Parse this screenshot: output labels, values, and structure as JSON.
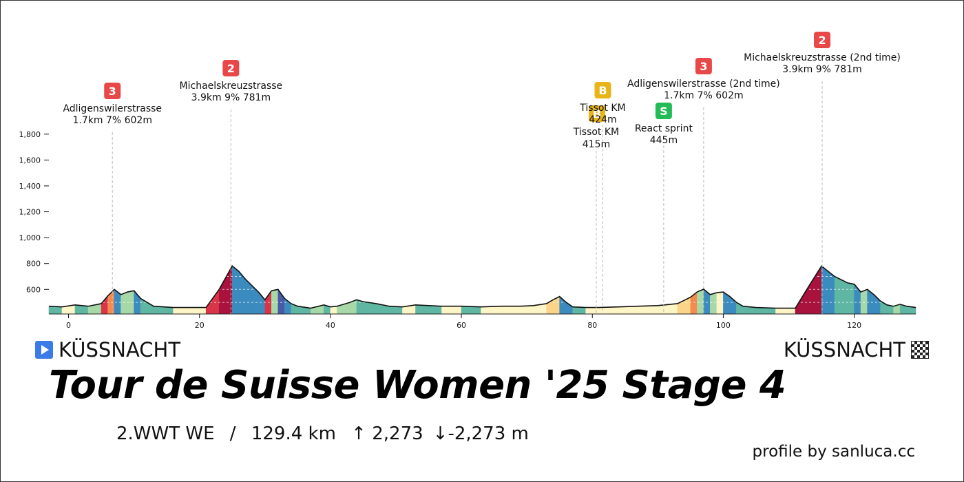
{
  "chart_data": {
    "type": "area",
    "title": "Tour de Suisse Women '25 Stage 4",
    "xlim": [
      -3,
      129.4
    ],
    "ylim": [
      410,
      1900
    ],
    "x_ticks": [
      0,
      20,
      40,
      60,
      80,
      100,
      120
    ],
    "y_ticks": [
      600,
      800,
      1000,
      1200,
      1400,
      1600,
      1800
    ],
    "y_tick_labels": [
      "600",
      "800",
      "1,000",
      "1,200",
      "1,400",
      "1,600",
      "1,800"
    ],
    "profile": {
      "x": [
        -3,
        -1,
        1,
        3,
        5,
        6,
        7,
        8,
        9,
        10,
        11,
        13,
        16,
        19,
        21,
        23,
        25,
        26,
        27,
        28,
        29,
        30,
        31,
        32,
        33,
        34,
        35,
        37,
        39,
        40,
        41,
        43,
        44,
        45,
        47,
        49,
        51,
        53,
        55,
        57,
        60,
        63,
        66,
        69,
        71,
        73,
        74,
        75,
        76,
        77,
        79,
        81,
        84,
        87,
        90,
        93,
        95,
        96,
        97,
        98,
        99,
        100,
        101,
        102,
        103,
        105,
        108,
        111,
        113,
        115,
        116,
        117,
        119,
        120,
        121,
        122,
        123,
        124,
        125,
        126,
        127,
        128,
        129.4
      ],
      "y": [
        470,
        465,
        480,
        470,
        490,
        550,
        600,
        560,
        580,
        590,
        530,
        470,
        460,
        460,
        460,
        600,
        781,
        740,
        680,
        630,
        580,
        520,
        590,
        600,
        530,
        490,
        470,
        455,
        480,
        465,
        470,
        500,
        520,
        505,
        490,
        470,
        465,
        480,
        475,
        470,
        470,
        465,
        470,
        470,
        475,
        490,
        520,
        545,
        500,
        465,
        460,
        460,
        465,
        470,
        475,
        490,
        540,
        580,
        602,
        560,
        575,
        580,
        545,
        500,
        470,
        460,
        455,
        455,
        620,
        781,
        740,
        700,
        650,
        640,
        580,
        600,
        560,
        510,
        480,
        470,
        485,
        470,
        460
      ]
    },
    "climbs": [
      {
        "km": 6.7,
        "cat": "3",
        "name": "Adligenswilerstrasse",
        "stats": "1.7km 7% 602m"
      },
      {
        "km": 24.8,
        "cat": "2",
        "name": "Michaelskreuzstrasse",
        "stats": "3.9km 9% 781m"
      },
      {
        "km": 97.0,
        "cat": "3",
        "name": "Adligenswilerstrasse (2nd time)",
        "stats": "1.7km 7% 602m"
      },
      {
        "km": 115.1,
        "cat": "2",
        "name": "Michaelskreuzstrasse (2nd time)",
        "stats": "3.9km 9% 781m"
      }
    ],
    "intermediates": [
      {
        "km": 80.6,
        "badge": "B",
        "name": "Tissot KM",
        "elev": "415m"
      },
      {
        "km": 81.6,
        "badge": "B",
        "name": "Tissot KM",
        "elev": "424m"
      },
      {
        "km": 90.9,
        "badge": "S",
        "name": "React sprint",
        "elev": "445m"
      }
    ]
  },
  "colors": {
    "cat3": "#e84848",
    "cat2": "#e84848",
    "bonus": "#e8b41a",
    "sprint": "#22bb55",
    "gradient_palette": [
      "#fdf5c5",
      "#a7d9a8",
      "#5fb6a3",
      "#3b8bbf",
      "#4b5aa8",
      "#5b3f93",
      "#fbd48a",
      "#f58a4f",
      "#d93548",
      "#a8123d"
    ]
  },
  "start": {
    "label": "KÜSSNACHT",
    "icon": "play-icon"
  },
  "finish": {
    "label": "KÜSSNACHT",
    "icon": "checkered-flag-icon"
  },
  "title": "Tour de Suisse Women '25 Stage 4",
  "stats": {
    "class": "2.WWT WE",
    "separator": "/",
    "distance": "129.4 km",
    "ascent": "↑ 2,273",
    "descent": "↓-2,273 m"
  },
  "credit": "profile by sanluca.cc"
}
